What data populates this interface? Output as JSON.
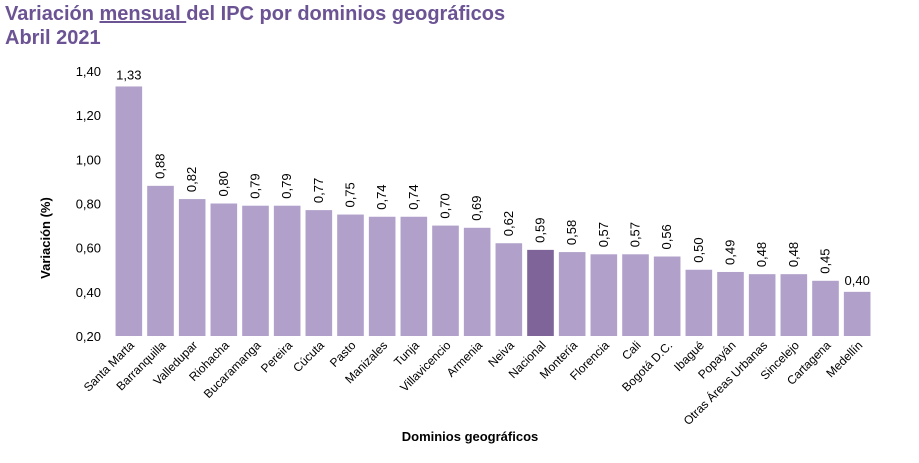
{
  "title": {
    "pre": "Variación ",
    "underlined": "mensual ",
    "post": "del IPC por dominios geográficos",
    "line2": "Abril 2021"
  },
  "chart_data": {
    "type": "bar",
    "xlabel": "Dominios geográficos",
    "ylabel": "Variación (%)",
    "ylim": [
      0.2,
      1.4
    ],
    "yticks": [
      "0,20",
      "0,40",
      "0,60",
      "0,80",
      "1,00",
      "1,20",
      "1,40"
    ],
    "grid": false,
    "categories": [
      "Santa Marta",
      "Barranquilla",
      "Valledupar",
      "Riohacha",
      "Bucaramanga",
      "Pereira",
      "Cúcuta",
      "Pasto",
      "Manizales",
      "Tunja",
      "Villavicencio",
      "Armenia",
      "Neiva",
      "Nacional",
      "Montería",
      "Florencia",
      "Cali",
      "Bogotá D.C.",
      "Ibagué",
      "Popayán",
      "Otras Áreas Urbanas",
      "Sincelejo",
      "Cartagena",
      "Medellín"
    ],
    "values": [
      1.33,
      0.88,
      0.82,
      0.8,
      0.79,
      0.79,
      0.77,
      0.75,
      0.74,
      0.74,
      0.7,
      0.69,
      0.62,
      0.59,
      0.58,
      0.57,
      0.57,
      0.56,
      0.5,
      0.49,
      0.48,
      0.48,
      0.45,
      0.4
    ],
    "value_labels": [
      "1,33",
      "0,88",
      "0,82",
      "0,80",
      "0,79",
      "0,79",
      "0,77",
      "0,75",
      "0,74",
      "0,74",
      "0,70",
      "0,69",
      "0,62",
      "0,59",
      "0,58",
      "0,57",
      "0,57",
      "0,56",
      "0,50",
      "0,49",
      "0,48",
      "0,48",
      "0,45",
      "0,40"
    ],
    "highlight_category": "Nacional",
    "colors": {
      "bar": "#b1a0ca",
      "highlight": "#7f6499"
    }
  }
}
